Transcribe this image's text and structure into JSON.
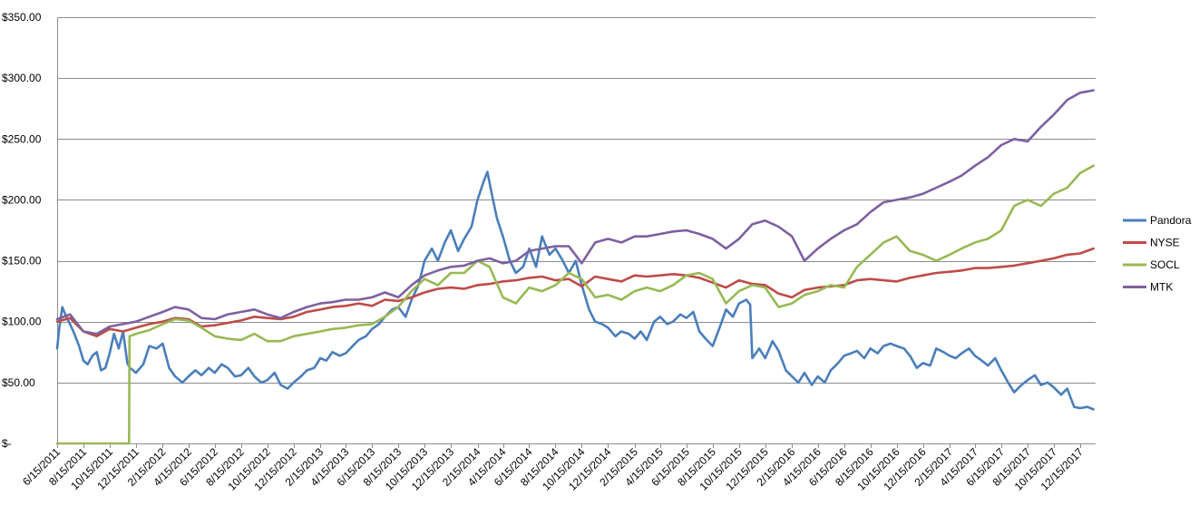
{
  "chart_data": {
    "type": "line",
    "title": "",
    "xlabel": "",
    "ylabel": "",
    "ylim": [
      0,
      350
    ],
    "yticks": [
      0,
      50,
      100,
      150,
      200,
      250,
      300,
      350
    ],
    "ytick_labels": [
      "$-",
      "$50.00",
      "$100.00",
      "$150.00",
      "$200.00",
      "$250.00",
      "$300.00",
      "$350.00"
    ],
    "xlim": [
      "2011-06-15",
      "2018-01-20"
    ],
    "xtick_labels": [
      "6/15/2011",
      "8/15/2011",
      "10/15/2011",
      "12/15/2011",
      "2/15/2012",
      "4/15/2012",
      "6/15/2012",
      "8/15/2012",
      "10/15/2012",
      "12/15/2012",
      "2/15/2013",
      "4/15/2013",
      "6/15/2013",
      "8/15/2013",
      "10/15/2013",
      "12/15/2013",
      "2/15/2014",
      "4/15/2014",
      "6/15/2014",
      "8/15/2014",
      "10/15/2014",
      "12/15/2014",
      "2/15/2015",
      "4/15/2015",
      "6/15/2015",
      "8/15/2015",
      "10/15/2015",
      "12/15/2015",
      "2/15/2016",
      "4/15/2016",
      "6/15/2016",
      "8/15/2016",
      "10/15/2016",
      "12/15/2016",
      "2/15/2017",
      "4/15/2017",
      "6/15/2017",
      "8/15/2017",
      "10/15/2017",
      "12/15/2017"
    ],
    "grid": true,
    "legend_position": "right",
    "colors": {
      "Pandora": "#4a7ebb",
      "NYSE": "#be4b48",
      "SOCL": "#98b954",
      "MTK": "#7d60a0",
      "grid": "#8c8c8c"
    },
    "series": [
      {
        "name": "Pandora",
        "x": [
          "2011-06-15",
          "2011-06-20",
          "2011-06-27",
          "2011-07-05",
          "2011-07-15",
          "2011-07-25",
          "2011-08-05",
          "2011-08-15",
          "2011-08-25",
          "2011-09-05",
          "2011-09-15",
          "2011-09-25",
          "2011-10-05",
          "2011-10-15",
          "2011-10-25",
          "2011-11-05",
          "2011-11-15",
          "2011-11-25",
          "2011-12-01",
          "2011-12-08",
          "2011-12-15",
          "2012-01-01",
          "2012-01-15",
          "2012-02-01",
          "2012-02-15",
          "2012-03-01",
          "2012-03-15",
          "2012-04-01",
          "2012-04-15",
          "2012-05-01",
          "2012-05-15",
          "2012-06-01",
          "2012-06-15",
          "2012-07-01",
          "2012-07-15",
          "2012-08-01",
          "2012-08-15",
          "2012-09-01",
          "2012-09-15",
          "2012-10-01",
          "2012-10-15",
          "2012-11-01",
          "2012-11-15",
          "2012-12-01",
          "2012-12-15",
          "2013-01-01",
          "2013-01-15",
          "2013-02-01",
          "2013-02-15",
          "2013-03-01",
          "2013-03-15",
          "2013-04-01",
          "2013-04-15",
          "2013-05-01",
          "2013-05-15",
          "2013-06-01",
          "2013-06-15",
          "2013-07-01",
          "2013-07-15",
          "2013-08-01",
          "2013-08-15",
          "2013-09-01",
          "2013-09-15",
          "2013-10-01",
          "2013-10-15",
          "2013-11-01",
          "2013-11-15",
          "2013-12-01",
          "2013-12-15",
          "2014-01-01",
          "2014-01-15",
          "2014-02-01",
          "2014-02-15",
          "2014-03-01",
          "2014-03-10",
          "2014-03-20",
          "2014-04-01",
          "2014-04-15",
          "2014-05-01",
          "2014-05-15",
          "2014-06-01",
          "2014-06-15",
          "2014-07-01",
          "2014-07-15",
          "2014-08-01",
          "2014-08-15",
          "2014-09-01",
          "2014-09-15",
          "2014-10-01",
          "2014-10-15",
          "2014-11-01",
          "2014-11-15",
          "2014-12-01",
          "2014-12-15",
          "2015-01-01",
          "2015-01-15",
          "2015-02-01",
          "2015-02-15",
          "2015-03-01",
          "2015-03-15",
          "2015-04-01",
          "2015-04-15",
          "2015-05-01",
          "2015-05-15",
          "2015-06-01",
          "2015-06-15",
          "2015-07-01",
          "2015-07-15",
          "2015-08-01",
          "2015-08-15",
          "2015-09-01",
          "2015-09-15",
          "2015-10-01",
          "2015-10-15",
          "2015-11-01",
          "2015-11-10",
          "2015-11-15",
          "2015-12-01",
          "2015-12-15",
          "2016-01-01",
          "2016-01-15",
          "2016-02-01",
          "2016-02-15",
          "2016-03-01",
          "2016-03-15",
          "2016-04-01",
          "2016-04-15",
          "2016-05-01",
          "2016-05-15",
          "2016-06-01",
          "2016-06-15",
          "2016-07-01",
          "2016-07-15",
          "2016-08-01",
          "2016-08-15",
          "2016-09-01",
          "2016-09-15",
          "2016-10-01",
          "2016-10-15",
          "2016-11-01",
          "2016-11-15",
          "2016-12-01",
          "2016-12-15",
          "2017-01-01",
          "2017-01-15",
          "2017-02-01",
          "2017-02-15",
          "2017-03-01",
          "2017-03-15",
          "2017-04-01",
          "2017-04-15",
          "2017-05-01",
          "2017-05-15",
          "2017-06-01",
          "2017-06-15",
          "2017-07-01",
          "2017-07-15",
          "2017-08-01",
          "2017-08-15",
          "2017-09-01",
          "2017-09-15",
          "2017-10-01",
          "2017-10-15",
          "2017-11-01",
          "2017-11-15",
          "2017-12-01",
          "2017-12-15",
          "2018-01-01",
          "2018-01-15"
        ],
        "y": [
          78,
          95,
          112,
          105,
          98,
          90,
          80,
          68,
          65,
          72,
          75,
          60,
          62,
          74,
          90,
          78,
          92,
          66,
          62,
          60,
          58,
          65,
          80,
          78,
          82,
          62,
          55,
          50,
          55,
          60,
          56,
          62,
          58,
          65,
          62,
          55,
          56,
          62,
          55,
          50,
          52,
          58,
          48,
          45,
          50,
          55,
          60,
          62,
          70,
          68,
          75,
          72,
          74,
          80,
          85,
          88,
          94,
          98,
          104,
          110,
          112,
          104,
          118,
          130,
          150,
          160,
          150,
          165,
          175,
          158,
          168,
          178,
          200,
          215,
          223,
          205,
          185,
          170,
          150,
          140,
          145,
          160,
          145,
          170,
          155,
          160,
          150,
          140,
          150,
          130,
          110,
          100,
          98,
          95,
          88,
          92,
          90,
          86,
          92,
          85,
          100,
          104,
          98,
          100,
          106,
          103,
          108,
          92,
          85,
          80,
          96,
          110,
          104,
          115,
          118,
          114,
          70,
          78,
          70,
          84,
          76,
          60,
          55,
          50,
          58,
          48,
          55,
          50,
          60,
          66,
          72,
          74,
          76,
          70,
          78,
          74,
          80,
          82,
          80,
          78,
          72,
          62,
          66,
          64,
          78,
          75,
          72,
          70,
          74,
          78,
          72,
          68,
          64,
          70,
          60,
          50,
          42,
          48,
          52,
          56,
          48,
          50,
          46,
          40,
          45,
          30,
          29,
          30,
          28
        ]
      },
      {
        "name": "NYSE",
        "x": [
          "2011-06-15",
          "2011-07-15",
          "2011-08-15",
          "2011-09-15",
          "2011-10-15",
          "2011-11-15",
          "2011-12-15",
          "2012-01-15",
          "2012-02-15",
          "2012-03-15",
          "2012-04-15",
          "2012-05-15",
          "2012-06-15",
          "2012-07-15",
          "2012-08-15",
          "2012-09-15",
          "2012-10-15",
          "2012-11-15",
          "2012-12-15",
          "2013-01-15",
          "2013-02-15",
          "2013-03-15",
          "2013-04-15",
          "2013-05-15",
          "2013-06-15",
          "2013-07-15",
          "2013-08-15",
          "2013-09-15",
          "2013-10-15",
          "2013-11-15",
          "2013-12-15",
          "2014-01-15",
          "2014-02-15",
          "2014-03-15",
          "2014-04-15",
          "2014-05-15",
          "2014-06-15",
          "2014-07-15",
          "2014-08-15",
          "2014-09-15",
          "2014-10-15",
          "2014-11-15",
          "2014-12-15",
          "2015-01-15",
          "2015-02-15",
          "2015-03-15",
          "2015-04-15",
          "2015-05-15",
          "2015-06-15",
          "2015-07-15",
          "2015-08-15",
          "2015-09-15",
          "2015-10-15",
          "2015-11-15",
          "2015-12-15",
          "2016-01-15",
          "2016-02-15",
          "2016-03-15",
          "2016-04-15",
          "2016-05-15",
          "2016-06-15",
          "2016-07-15",
          "2016-08-15",
          "2016-09-15",
          "2016-10-15",
          "2016-11-15",
          "2016-12-15",
          "2017-01-15",
          "2017-02-15",
          "2017-03-15",
          "2017-04-15",
          "2017-05-15",
          "2017-06-15",
          "2017-07-15",
          "2017-08-15",
          "2017-09-15",
          "2017-10-15",
          "2017-11-15",
          "2017-12-15",
          "2018-01-15"
        ],
        "y": [
          100,
          103,
          92,
          88,
          94,
          92,
          95,
          98,
          100,
          103,
          102,
          96,
          97,
          99,
          101,
          104,
          103,
          102,
          104,
          108,
          110,
          112,
          113,
          115,
          113,
          118,
          117,
          120,
          124,
          127,
          128,
          127,
          130,
          131,
          133,
          134,
          136,
          137,
          134,
          135,
          129,
          137,
          135,
          133,
          138,
          137,
          138,
          139,
          138,
          136,
          132,
          128,
          134,
          131,
          130,
          123,
          120,
          126,
          128,
          129,
          130,
          134,
          135,
          134,
          133,
          136,
          138,
          140,
          141,
          142,
          144,
          144,
          145,
          146,
          148,
          150,
          152,
          155,
          156,
          160
        ]
      },
      {
        "name": "SOCL",
        "x": [
          "2011-06-15",
          "2011-07-15",
          "2011-08-15",
          "2011-09-15",
          "2011-10-15",
          "2011-11-15",
          "2011-11-29",
          "2011-11-30",
          "2011-12-15",
          "2012-01-15",
          "2012-02-15",
          "2012-03-15",
          "2012-04-15",
          "2012-05-15",
          "2012-06-15",
          "2012-07-15",
          "2012-08-15",
          "2012-09-15",
          "2012-10-15",
          "2012-11-15",
          "2012-12-15",
          "2013-01-15",
          "2013-02-15",
          "2013-03-15",
          "2013-04-15",
          "2013-05-15",
          "2013-06-15",
          "2013-07-15",
          "2013-08-15",
          "2013-09-15",
          "2013-10-15",
          "2013-11-15",
          "2013-12-15",
          "2014-01-15",
          "2014-02-15",
          "2014-03-15",
          "2014-04-15",
          "2014-05-15",
          "2014-06-15",
          "2014-07-15",
          "2014-08-15",
          "2014-09-15",
          "2014-10-15",
          "2014-11-15",
          "2014-12-15",
          "2015-01-15",
          "2015-02-15",
          "2015-03-15",
          "2015-04-15",
          "2015-05-15",
          "2015-06-15",
          "2015-07-15",
          "2015-08-15",
          "2015-09-15",
          "2015-10-15",
          "2015-11-15",
          "2015-12-15",
          "2016-01-15",
          "2016-02-15",
          "2016-03-15",
          "2016-04-15",
          "2016-05-15",
          "2016-06-15",
          "2016-07-15",
          "2016-08-15",
          "2016-09-15",
          "2016-10-15",
          "2016-11-15",
          "2016-12-15",
          "2017-01-15",
          "2017-02-15",
          "2017-03-15",
          "2017-04-15",
          "2017-05-15",
          "2017-06-15",
          "2017-07-15",
          "2017-08-15",
          "2017-09-15",
          "2017-10-15",
          "2017-11-15",
          "2017-12-15",
          "2018-01-15"
        ],
        "y": [
          0,
          0,
          0,
          0,
          0,
          0,
          0,
          88,
          90,
          93,
          98,
          102,
          101,
          95,
          88,
          86,
          85,
          90,
          84,
          84,
          88,
          90,
          92,
          94,
          95,
          97,
          98,
          104,
          112,
          125,
          135,
          130,
          140,
          140,
          150,
          145,
          120,
          115,
          128,
          125,
          130,
          140,
          135,
          120,
          122,
          118,
          125,
          128,
          125,
          130,
          138,
          140,
          135,
          115,
          125,
          130,
          128,
          112,
          115,
          122,
          125,
          130,
          128,
          145,
          155,
          165,
          170,
          158,
          155,
          150,
          155,
          160,
          165,
          168,
          175,
          195,
          200,
          195,
          205,
          210,
          222,
          228
        ]
      },
      {
        "name": "MTK",
        "x": [
          "2011-06-15",
          "2011-07-15",
          "2011-08-15",
          "2011-09-15",
          "2011-10-15",
          "2011-11-15",
          "2011-12-15",
          "2012-01-15",
          "2012-02-15",
          "2012-03-15",
          "2012-04-15",
          "2012-05-15",
          "2012-06-15",
          "2012-07-15",
          "2012-08-15",
          "2012-09-15",
          "2012-10-15",
          "2012-11-15",
          "2012-12-15",
          "2013-01-15",
          "2013-02-15",
          "2013-03-15",
          "2013-04-15",
          "2013-05-15",
          "2013-06-15",
          "2013-07-15",
          "2013-08-15",
          "2013-09-15",
          "2013-10-15",
          "2013-11-15",
          "2013-12-15",
          "2014-01-15",
          "2014-02-15",
          "2014-03-15",
          "2014-04-15",
          "2014-05-15",
          "2014-06-15",
          "2014-07-15",
          "2014-08-15",
          "2014-09-15",
          "2014-10-15",
          "2014-11-15",
          "2014-12-15",
          "2015-01-15",
          "2015-02-15",
          "2015-03-15",
          "2015-04-15",
          "2015-05-15",
          "2015-06-15",
          "2015-07-15",
          "2015-08-15",
          "2015-09-15",
          "2015-10-15",
          "2015-11-15",
          "2015-12-15",
          "2016-01-15",
          "2016-02-15",
          "2016-03-15",
          "2016-04-15",
          "2016-05-15",
          "2016-06-15",
          "2016-07-15",
          "2016-08-15",
          "2016-09-15",
          "2016-10-15",
          "2016-11-15",
          "2016-12-15",
          "2017-01-15",
          "2017-02-15",
          "2017-03-15",
          "2017-04-15",
          "2017-05-15",
          "2017-06-15",
          "2017-07-15",
          "2017-08-15",
          "2017-09-15",
          "2017-10-15",
          "2017-11-15",
          "2017-12-15",
          "2018-01-15"
        ],
        "y": [
          102,
          106,
          92,
          90,
          96,
          98,
          100,
          104,
          108,
          112,
          110,
          103,
          102,
          106,
          108,
          110,
          106,
          103,
          108,
          112,
          115,
          116,
          118,
          118,
          120,
          124,
          120,
          130,
          138,
          142,
          145,
          146,
          150,
          152,
          148,
          150,
          158,
          160,
          162,
          162,
          148,
          165,
          168,
          165,
          170,
          170,
          172,
          174,
          175,
          172,
          168,
          160,
          168,
          180,
          183,
          178,
          170,
          150,
          160,
          168,
          175,
          180,
          190,
          198,
          200,
          202,
          205,
          210,
          215,
          220,
          228,
          235,
          245,
          250,
          248,
          260,
          270,
          282,
          288,
          290
        ]
      }
    ]
  }
}
